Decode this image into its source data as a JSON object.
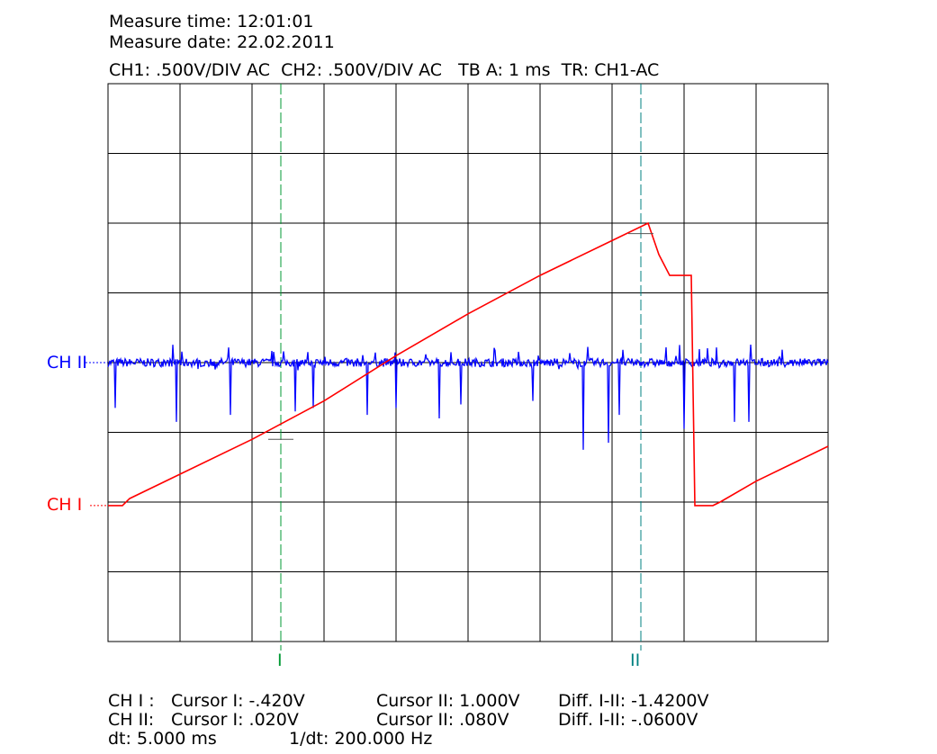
{
  "header": {
    "measure_time": "Measure time: 12:01:01",
    "measure_date": "Measure date: 22.02.2011",
    "settings": "CH1: .500V/DIV AC  CH2: .500V/DIV AC   TB A: 1 ms  TR: CH1-AC"
  },
  "channel_labels": {
    "ch2": "CH II",
    "ch1": "CH I"
  },
  "cursor_labels": {
    "c1": "I",
    "c2": "II"
  },
  "footer": {
    "row1": {
      "ch": "CH I :",
      "c1": "Cursor I: -.420V",
      "c2": "Cursor II: 1.000V",
      "diff": "Diff. I-II: -1.4200V"
    },
    "row2": {
      "ch": "CH II:",
      "c1": "Cursor I: .020V",
      "c2": "Cursor II: .080V",
      "diff": "Diff. I-II: -.0600V"
    },
    "row3": {
      "dt": "dt: 5.000 ms",
      "inv": "1/dt: 200.000 Hz"
    }
  },
  "colors": {
    "ch1": "#ff0000",
    "ch2": "#0000ff",
    "cursor1": "#009933",
    "cursor2": "#008080",
    "grid": "#000000"
  },
  "chart_data": {
    "type": "line",
    "divisions": {
      "x": 10,
      "y": 8
    },
    "x_range_div": [
      0,
      10
    ],
    "y_range_div": [
      0,
      8
    ],
    "cursors_div": [
      2.4,
      7.4
    ],
    "series": [
      {
        "name": "CH I",
        "x": [
          0,
          0.2,
          0.3,
          1.0,
          2.0,
          3.0,
          4.0,
          5.0,
          6.0,
          7.0,
          7.5,
          7.65,
          7.8,
          8.1,
          8.15,
          8.4,
          8.5,
          9.0,
          10.0
        ],
        "y": [
          1.95,
          1.95,
          2.05,
          2.4,
          2.9,
          3.45,
          4.1,
          4.7,
          5.25,
          5.75,
          6.0,
          5.55,
          5.25,
          5.25,
          1.95,
          1.95,
          2.0,
          2.3,
          2.8
        ]
      },
      {
        "name": "CH II",
        "baseline_div": 4.0,
        "spikes_x_div": [
          0.1,
          0.95,
          1.7,
          2.6,
          2.85,
          3.6,
          4.0,
          4.6,
          4.9,
          5.9,
          6.6,
          6.95,
          7.1,
          8.0,
          8.7,
          8.9
        ],
        "spikes_y_div": [
          3.35,
          3.15,
          3.25,
          3.3,
          3.35,
          3.25,
          3.35,
          3.2,
          3.4,
          3.45,
          2.75,
          2.85,
          3.25,
          3.05,
          3.15,
          3.15
        ]
      }
    ]
  }
}
